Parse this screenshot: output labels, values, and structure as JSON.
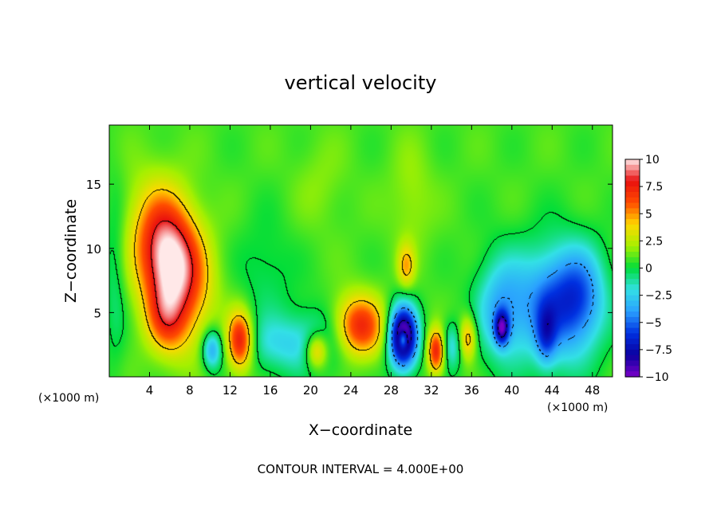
{
  "chart_data": {
    "type": "heatmap",
    "title": "vertical velocity",
    "xlabel": "X−coordinate",
    "ylabel": "Z−coordinate",
    "x_unit_left": "(×1000 m)",
    "x_unit_right": "(×1000 m)",
    "footer": "CONTOUR INTERVAL = 4.000E+00",
    "xlim": [
      0,
      50
    ],
    "ylim": [
      0,
      19.6
    ],
    "x_ticks": [
      4,
      8,
      12,
      16,
      20,
      24,
      28,
      32,
      36,
      40,
      44,
      48
    ],
    "x_tick_labels": [
      "4",
      "8",
      "12",
      "16",
      "20",
      "24",
      "28",
      "32",
      "36",
      "40",
      "44",
      "48"
    ],
    "y_ticks": [
      5,
      10,
      15
    ],
    "y_tick_labels": [
      "5",
      "10",
      "15"
    ],
    "colorbar": {
      "range": [
        -10,
        10
      ],
      "ticks": [
        10,
        7.5,
        5,
        2.5,
        0,
        -2.5,
        -5,
        -7.5,
        -10
      ],
      "tick_labels": [
        "10",
        "7.5",
        "5",
        "2.5",
        "0",
        "−2.5",
        "−5",
        "−7.5",
        "−10"
      ],
      "colors": [
        "#7a00c8",
        "#0a00a0",
        "#0030e0",
        "#2aa0ff",
        "#33e0e6",
        "#00dd3a",
        "#a6f000",
        "#ffd800",
        "#ff4b00",
        "#e80f0f",
        "#ffe8e8"
      ]
    },
    "background_value": 0.8,
    "contour_interval": 4,
    "features": [
      {
        "x": 6.1,
        "z": 9.0,
        "sx": 2.2,
        "sz": 3.6,
        "theta": 15,
        "w": 10.5
      },
      {
        "x": 5.6,
        "z": 4.3,
        "sx": 1.4,
        "sz": 1.9,
        "theta": 10,
        "w": 3.5
      },
      {
        "x": 13.0,
        "z": 2.8,
        "sx": 0.9,
        "sz": 1.6,
        "theta": 0,
        "w": 7.5
      },
      {
        "x": 10.2,
        "z": 2.1,
        "sx": 0.7,
        "sz": 1.1,
        "theta": 0,
        "w": -4.5
      },
      {
        "x": 17.0,
        "z": 2.5,
        "sx": 3.0,
        "sz": 1.6,
        "theta": 0,
        "w": -2.5
      },
      {
        "x": 21.5,
        "z": 3.0,
        "sx": 2.5,
        "sz": 2.0,
        "theta": 0,
        "w": -2.0
      },
      {
        "x": 20.6,
        "z": 2.0,
        "sx": 0.8,
        "sz": 1.0,
        "theta": 0,
        "w": 5.0
      },
      {
        "x": 24.8,
        "z": 3.9,
        "sx": 1.8,
        "sz": 1.7,
        "theta": -15,
        "w": 7.0
      },
      {
        "x": 29.2,
        "z": 3.1,
        "sx": 1.0,
        "sz": 1.7,
        "theta": 0,
        "w": -12.0
      },
      {
        "x": 29.2,
        "z": 2.9,
        "sx": 0.3,
        "sz": 0.5,
        "theta": 0,
        "w": 6.0
      },
      {
        "x": 29.5,
        "z": 8.6,
        "sx": 0.6,
        "sz": 1.2,
        "theta": 0,
        "w": 3.5
      },
      {
        "x": 32.5,
        "z": 2.0,
        "sx": 0.6,
        "sz": 1.2,
        "theta": 0,
        "w": 7.0
      },
      {
        "x": 34.0,
        "z": 2.4,
        "sx": 0.8,
        "sz": 1.3,
        "theta": 0,
        "w": -3.0
      },
      {
        "x": 35.6,
        "z": 3.0,
        "sx": 0.6,
        "sz": 1.2,
        "theta": 0,
        "w": 4.5
      },
      {
        "x": 38.9,
        "z": 5.3,
        "sx": 1.8,
        "sz": 2.9,
        "theta": 0,
        "w": -4.0
      },
      {
        "x": 39.0,
        "z": 3.8,
        "sx": 0.5,
        "sz": 0.9,
        "theta": 0,
        "w": -7.0
      },
      {
        "x": 44.6,
        "z": 5.6,
        "sx": 2.8,
        "sz": 3.2,
        "theta": 0,
        "w": -6.3
      },
      {
        "x": 43.4,
        "z": 3.2,
        "sx": 0.7,
        "sz": 1.6,
        "theta": 0,
        "w": -3.5
      },
      {
        "x": 47.0,
        "z": 6.5,
        "sx": 1.6,
        "sz": 2.5,
        "theta": 0,
        "w": -2.5
      },
      {
        "x": 30.0,
        "z": 14.0,
        "sx": 1.5,
        "sz": 3.0,
        "theta": 0,
        "w": 1.2
      },
      {
        "x": 21.0,
        "z": 15.0,
        "sx": 1.8,
        "sz": 2.5,
        "theta": 0,
        "w": 0.8
      },
      {
        "x": 0.6,
        "z": 8.0,
        "sx": 0.8,
        "sz": 5.0,
        "theta": 0,
        "w": -1.5
      },
      {
        "x": 15.5,
        "z": 8.0,
        "sx": 2.0,
        "sz": 3.0,
        "theta": 0,
        "w": -1.2
      }
    ]
  }
}
